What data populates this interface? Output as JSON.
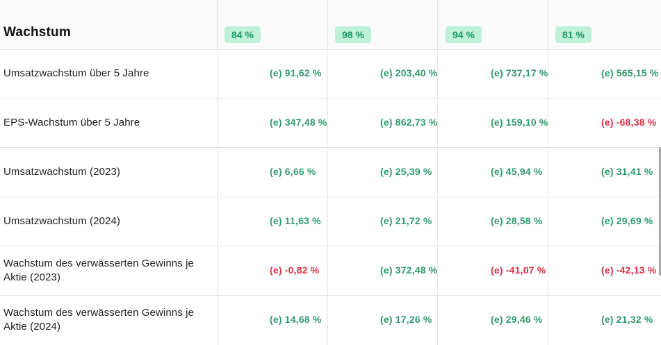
{
  "section": {
    "title": "Wachstum"
  },
  "scores": [
    "84 %",
    "98 %",
    "94 %",
    "81 %"
  ],
  "rows": [
    {
      "label": "Umsatzwachstum über 5 Jahre",
      "values": [
        {
          "text": "(e) 91,62 %",
          "sign": "pos"
        },
        {
          "text": "(e) 203,40 %",
          "sign": "pos"
        },
        {
          "text": "(e) 737,17 %",
          "sign": "pos"
        },
        {
          "text": "(e) 565,15 %",
          "sign": "pos"
        }
      ]
    },
    {
      "label": "EPS-Wachstum über 5 Jahre",
      "values": [
        {
          "text": "(e) 347,48 %",
          "sign": "pos"
        },
        {
          "text": "(e) 862,73 %",
          "sign": "pos"
        },
        {
          "text": "(e) 159,10 %",
          "sign": "pos"
        },
        {
          "text": "(e) -68,38 %",
          "sign": "neg"
        }
      ]
    },
    {
      "label": "Umsatzwachstum (2023)",
      "values": [
        {
          "text": "(e) 6,66 %",
          "sign": "pos"
        },
        {
          "text": "(e) 25,39 %",
          "sign": "pos"
        },
        {
          "text": "(e) 45,94 %",
          "sign": "pos"
        },
        {
          "text": "(e) 31,41 %",
          "sign": "pos"
        }
      ]
    },
    {
      "label": "Umsatzwachstum (2024)",
      "values": [
        {
          "text": "(e) 11,63 %",
          "sign": "pos"
        },
        {
          "text": "(e) 21,72 %",
          "sign": "pos"
        },
        {
          "text": "(e) 28,58 %",
          "sign": "pos"
        },
        {
          "text": "(e) 29,69 %",
          "sign": "pos"
        }
      ]
    },
    {
      "label": "Wachstum des verwässerten Gewinns je Aktie (2023)",
      "values": [
        {
          "text": "(e) -0,82 %",
          "sign": "neg"
        },
        {
          "text": "(e) 372,48 %",
          "sign": "pos"
        },
        {
          "text": "(e) -41,07 %",
          "sign": "neg"
        },
        {
          "text": "(e) -42,13 %",
          "sign": "neg"
        }
      ]
    },
    {
      "label": "Wachstum des verwässerten Gewinns je Aktie (2024)",
      "values": [
        {
          "text": "(e) 14,68 %",
          "sign": "pos"
        },
        {
          "text": "(e) 17,26 %",
          "sign": "pos"
        },
        {
          "text": "(e) 29,46 %",
          "sign": "pos"
        },
        {
          "text": "(e) 21,32 %",
          "sign": "pos"
        }
      ]
    }
  ],
  "colors": {
    "positive": "#2f9b6c",
    "negative": "#e03046",
    "badge_bg": "#bff0d9",
    "badge_text": "#1c9a65"
  }
}
